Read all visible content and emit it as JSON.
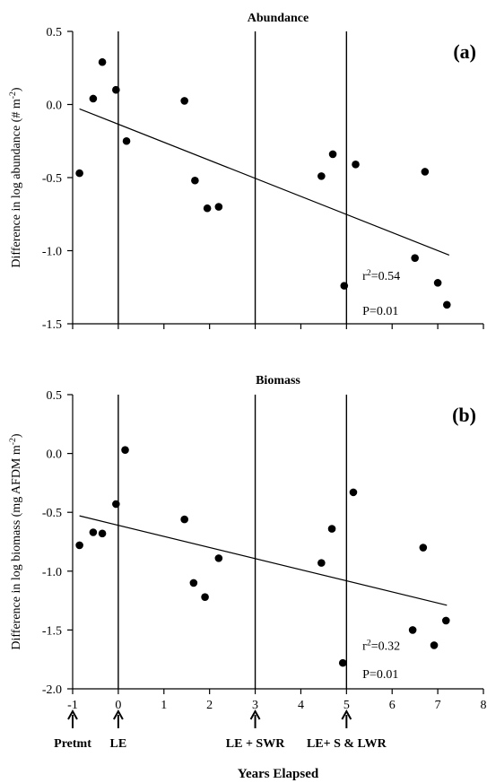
{
  "chart_data": [
    {
      "type": "scatter",
      "panel_label": "(a)",
      "title": "Abundance",
      "ylabel": "Difference in log abundance (# m⁻²)",
      "xlim": [
        -1,
        8
      ],
      "ylim": [
        -1.5,
        0.5
      ],
      "yticks": [
        "0.5",
        "0.0",
        "-0.5",
        "-1.0",
        "-1.5"
      ],
      "ytick_values": [
        0.5,
        0.0,
        -0.5,
        -1.0,
        -1.5
      ],
      "vlines": [
        0,
        3,
        5
      ],
      "points": [
        [
          -0.85,
          -0.47
        ],
        [
          -0.55,
          0.04
        ],
        [
          -0.35,
          0.29
        ],
        [
          -0.05,
          0.1
        ],
        [
          0.18,
          -0.25
        ],
        [
          1.45,
          0.025
        ],
        [
          1.68,
          -0.52
        ],
        [
          1.95,
          -0.71
        ],
        [
          2.2,
          -0.7
        ],
        [
          4.45,
          -0.49
        ],
        [
          4.7,
          -0.34
        ],
        [
          4.95,
          -1.24
        ],
        [
          5.2,
          -0.41
        ],
        [
          6.5,
          -1.05
        ],
        [
          6.72,
          -0.46
        ],
        [
          7.0,
          -1.22
        ],
        [
          7.2,
          -1.37
        ]
      ],
      "fit_line": {
        "x": [
          -0.85,
          7.25
        ],
        "y": [
          -0.03,
          -1.03
        ]
      },
      "annotations": {
        "r2": "r²=0.54",
        "p": "P=0.01"
      }
    },
    {
      "type": "scatter",
      "panel_label": "(b)",
      "title": "Biomass",
      "ylabel": "Difference in log biomass (mg AFDM m⁻²)",
      "xlabel": "Years Elapsed",
      "xlim": [
        -1,
        8
      ],
      "ylim": [
        -2.0,
        0.5
      ],
      "yticks": [
        "0.5",
        "0.0",
        "-0.5",
        "-1.0",
        "-1.5",
        "-2.0"
      ],
      "ytick_values": [
        0.5,
        0.0,
        -0.5,
        -1.0,
        -1.5,
        -2.0
      ],
      "xticks": [
        "-1",
        "0",
        "1",
        "2",
        "3",
        "4",
        "5",
        "6",
        "7",
        "8"
      ],
      "xtick_values": [
        -1,
        0,
        1,
        2,
        3,
        4,
        5,
        6,
        7,
        8
      ],
      "vlines": [
        0,
        3,
        5
      ],
      "points": [
        [
          -0.85,
          -0.78
        ],
        [
          -0.55,
          -0.67
        ],
        [
          -0.35,
          -0.68
        ],
        [
          -0.05,
          -0.43
        ],
        [
          0.15,
          0.03
        ],
        [
          1.45,
          -0.56
        ],
        [
          1.65,
          -1.1
        ],
        [
          1.9,
          -1.22
        ],
        [
          2.2,
          -0.89
        ],
        [
          4.45,
          -0.93
        ],
        [
          4.68,
          -0.64
        ],
        [
          4.92,
          -1.78
        ],
        [
          5.15,
          -0.33
        ],
        [
          6.45,
          -1.5
        ],
        [
          6.68,
          -0.8
        ],
        [
          6.92,
          -1.63
        ],
        [
          7.18,
          -1.42
        ]
      ],
      "fit_line": {
        "x": [
          -0.85,
          7.2
        ],
        "y": [
          -0.53,
          -1.29
        ]
      },
      "annotations": {
        "r2": "r²=0.32",
        "p": "P=0.01"
      }
    }
  ],
  "treatment_markers": [
    {
      "x": -1,
      "label": "Pretmt"
    },
    {
      "x": 0,
      "label": "LE"
    },
    {
      "x": 3,
      "label": "LE + SWR"
    },
    {
      "x": 5,
      "label": "LE+ S & LWR"
    }
  ],
  "colors": {
    "ink": "#000000",
    "background": "#ffffff"
  }
}
